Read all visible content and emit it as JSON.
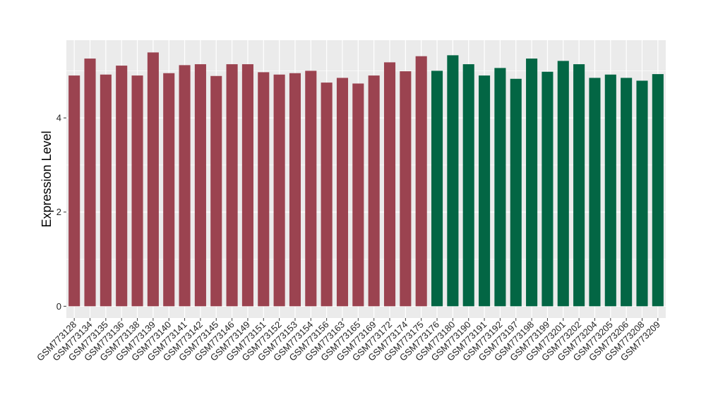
{
  "chart_data": {
    "type": "bar",
    "title": "",
    "xlabel": "",
    "ylabel": "Expression Level",
    "ylim": [
      -0.25,
      5.65
    ],
    "yticks": [
      0,
      2,
      4
    ],
    "grid": true,
    "colors": {
      "group1": "#9b4350",
      "group2": "#036644",
      "panel": "#ebebeb",
      "grid": "#ffffff"
    },
    "categories": [
      "GSM773128",
      "GSM773134",
      "GSM773135",
      "GSM773136",
      "GSM773138",
      "GSM773139",
      "GSM773140",
      "GSM773141",
      "GSM773142",
      "GSM773145",
      "GSM773146",
      "GSM773149",
      "GSM773151",
      "GSM773152",
      "GSM773153",
      "GSM773154",
      "GSM773156",
      "GSM773163",
      "GSM773165",
      "GSM773169",
      "GSM773172",
      "GSM773174",
      "GSM773175",
      "GSM773176",
      "GSM773180",
      "GSM773190",
      "GSM773191",
      "GSM773192",
      "GSM773197",
      "GSM773198",
      "GSM773199",
      "GSM773201",
      "GSM773202",
      "GSM773204",
      "GSM773205",
      "GSM773206",
      "GSM773208",
      "GSM773209"
    ],
    "values": [
      4.9,
      5.26,
      4.92,
      5.11,
      4.9,
      5.39,
      4.95,
      5.12,
      5.14,
      4.89,
      5.14,
      5.14,
      4.97,
      4.92,
      4.95,
      5.0,
      4.75,
      4.85,
      4.73,
      4.9,
      5.18,
      4.99,
      5.31,
      5.0,
      5.33,
      5.14,
      4.9,
      5.06,
      4.83,
      5.26,
      4.98,
      5.21,
      5.14,
      4.85,
      4.92,
      4.85,
      4.79,
      4.93
    ],
    "groups": [
      1,
      1,
      1,
      1,
      1,
      1,
      1,
      1,
      1,
      1,
      1,
      1,
      1,
      1,
      1,
      1,
      1,
      1,
      1,
      1,
      1,
      1,
      1,
      2,
      2,
      2,
      2,
      2,
      2,
      2,
      2,
      2,
      2,
      2,
      2,
      2,
      2,
      2
    ]
  }
}
